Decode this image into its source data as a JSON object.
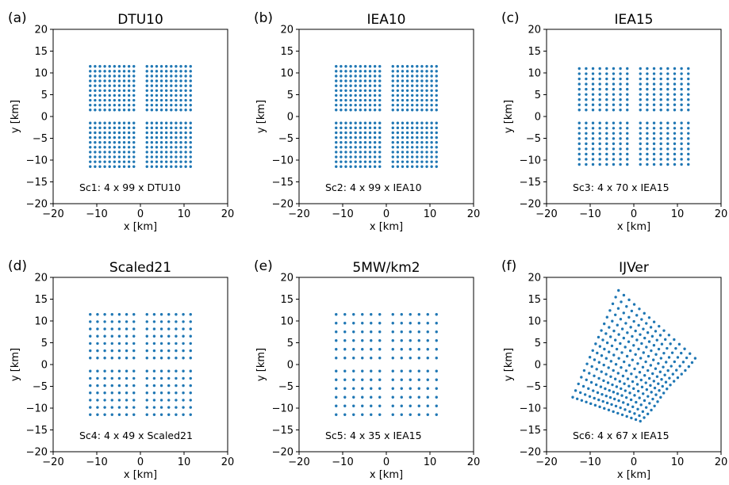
{
  "chart_data": [
    {
      "type": "scatter",
      "panel": "(a)",
      "title": "DTU10",
      "xlabel": "x [km]",
      "ylabel": "y [km]",
      "xlim": [
        -20,
        20
      ],
      "ylim": [
        -20,
        20
      ],
      "xticks": [
        -20,
        -10,
        0,
        10,
        20
      ],
      "yticks": [
        -20,
        -15,
        -10,
        -5,
        0,
        5,
        10,
        15,
        20
      ],
      "annotation": "Sc1: 4 x 99 x DTU10",
      "marker_color": "#1f77b4",
      "layout": "four square farms",
      "farms": 4,
      "turbines_per_farm": 99,
      "farm_x_ranges": [
        [
          -11.5,
          -1.5
        ],
        [
          1.5,
          11.5
        ]
      ],
      "farm_y_ranges": [
        [
          1.5,
          11.5
        ],
        [
          -11.5,
          -1.5
        ]
      ],
      "grid_cols": 10,
      "grid_rows": 10
    },
    {
      "type": "scatter",
      "panel": "(b)",
      "title": "IEA10",
      "xlabel": "x [km]",
      "ylabel": "y [km]",
      "xlim": [
        -20,
        20
      ],
      "ylim": [
        -20,
        20
      ],
      "xticks": [
        -20,
        -10,
        0,
        10,
        20
      ],
      "yticks": [
        -20,
        -15,
        -10,
        -5,
        0,
        5,
        10,
        15,
        20
      ],
      "annotation": "Sc2: 4 x 99 x IEA10",
      "marker_color": "#1f77b4",
      "layout": "four square farms",
      "farms": 4,
      "turbines_per_farm": 99,
      "farm_x_ranges": [
        [
          -11.5,
          -1.5
        ],
        [
          1.5,
          11.5
        ]
      ],
      "farm_y_ranges": [
        [
          1.5,
          11.5
        ],
        [
          -11.5,
          -1.5
        ]
      ],
      "grid_cols": 10,
      "grid_rows": 10
    },
    {
      "type": "scatter",
      "panel": "(c)",
      "title": "IEA15",
      "xlabel": "x [km]",
      "ylabel": "y [km]",
      "xlim": [
        -20,
        20
      ],
      "ylim": [
        -20,
        20
      ],
      "xticks": [
        -20,
        -10,
        0,
        10,
        20
      ],
      "yticks": [
        -20,
        -15,
        -10,
        -5,
        0,
        5,
        10,
        15,
        20
      ],
      "annotation": "Sc3: 4 x 70 x IEA15",
      "marker_color": "#1f77b4",
      "layout": "four square farms",
      "farms": 4,
      "turbines_per_farm": 70,
      "farm_x_ranges": [
        [
          -12.5,
          -1.5
        ],
        [
          1.5,
          12.5
        ]
      ],
      "farm_y_ranges": [
        [
          1.5,
          11
        ],
        [
          -11,
          -1.5
        ]
      ],
      "grid_cols": 8,
      "grid_rows": 9
    },
    {
      "type": "scatter",
      "panel": "(d)",
      "title": "Scaled21",
      "xlabel": "x [km]",
      "ylabel": "y [km]",
      "xlim": [
        -20,
        20
      ],
      "ylim": [
        -20,
        20
      ],
      "xticks": [
        -20,
        -10,
        0,
        10,
        20
      ],
      "yticks": [
        -20,
        -15,
        -10,
        -5,
        0,
        5,
        10,
        15,
        20
      ],
      "annotation": "Sc4: 4 x 49 x Scaled21",
      "marker_color": "#1f77b4",
      "layout": "four square farms",
      "farms": 4,
      "turbines_per_farm": 49,
      "farm_x_ranges": [
        [
          -11.5,
          -1.5
        ],
        [
          1.5,
          11.5
        ]
      ],
      "farm_y_ranges": [
        [
          1.5,
          11.5
        ],
        [
          -11.5,
          -1.5
        ]
      ],
      "grid_cols": 7,
      "grid_rows": 7
    },
    {
      "type": "scatter",
      "panel": "(e)",
      "title": "5MW/km2",
      "xlabel": "x [km]",
      "ylabel": "y [km]",
      "xlim": [
        -20,
        20
      ],
      "ylim": [
        -20,
        20
      ],
      "xticks": [
        -20,
        -10,
        0,
        10,
        20
      ],
      "yticks": [
        -20,
        -15,
        -10,
        -5,
        0,
        5,
        10,
        15,
        20
      ],
      "annotation": "Sc5: 4 x 35 x IEA15",
      "marker_color": "#1f77b4",
      "layout": "four square farms",
      "farms": 4,
      "turbines_per_farm": 35,
      "farm_x_ranges": [
        [
          -11.5,
          -1.5
        ],
        [
          1.5,
          11.5
        ]
      ],
      "farm_y_ranges": [
        [
          1.5,
          11.5
        ],
        [
          -11.5,
          -1.5
        ]
      ],
      "grid_cols": 6,
      "grid_rows": 6
    },
    {
      "type": "scatter",
      "panel": "(f)",
      "title": "IJVer",
      "xlabel": "x [km]",
      "ylabel": "y [km]",
      "xlim": [
        -20,
        20
      ],
      "ylim": [
        -20,
        20
      ],
      "xticks": [
        -20,
        -10,
        0,
        10,
        20
      ],
      "yticks": [
        -20,
        -15,
        -10,
        -5,
        0,
        5,
        10,
        15,
        20
      ],
      "annotation": "Sc6: 4 x 67 x IEA15",
      "marker_color": "#1f77b4",
      "layout": "rotated irregular cluster",
      "farms": 4,
      "turbines_per_farm": 67,
      "outline_corners": [
        [
          -3.5,
          17
        ],
        [
          14,
          1.5
        ],
        [
          1.5,
          -13
        ],
        [
          -14,
          -7.5
        ]
      ],
      "grid_cols": 17,
      "grid_rows": 16
    }
  ]
}
